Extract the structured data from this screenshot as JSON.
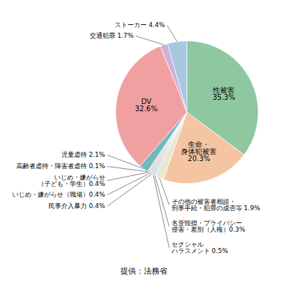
{
  "chart_data": {
    "type": "pie",
    "categories": [
      "性被害\n35.3%",
      "生命・\n身体犯被害\n20.3%",
      "その他の被害者相談・\n刑事手続・犯罪の成否等 1.9%",
      "名誉毀損・プライバシー\n侵害・差別（人権）0.3%",
      "セクシャル\nハラスメント 0.5%",
      "民事介入暴力 0.4%",
      "いじめ・嫌がらせ（職場）0.4%",
      "いじめ・嫌がらせ\n（子ども・学生）0.4%",
      "高齢者虐待・障害者虐待 0.1%",
      "児童虐待 2.1%",
      "DV\n32.6%",
      "交通犯罪 1.7%",
      "ストーカー 4.4%"
    ],
    "values": [
      35.3,
      20.3,
      1.9,
      0.3,
      0.5,
      0.4,
      0.4,
      0.4,
      0.1,
      2.1,
      32.6,
      1.7,
      4.4
    ],
    "colors": [
      "#8DC8A0",
      "#F5C5A3",
      "#E8E8D0",
      "#D8C8D8",
      "#C8D8E8",
      "#C8D0C8",
      "#D0C8D0",
      "#D8D0C8",
      "#C8C8C8",
      "#70B8C0",
      "#F0A0A0",
      "#D0B0D8",
      "#A8C8E0"
    ],
    "caption": "提供：法務省"
  }
}
